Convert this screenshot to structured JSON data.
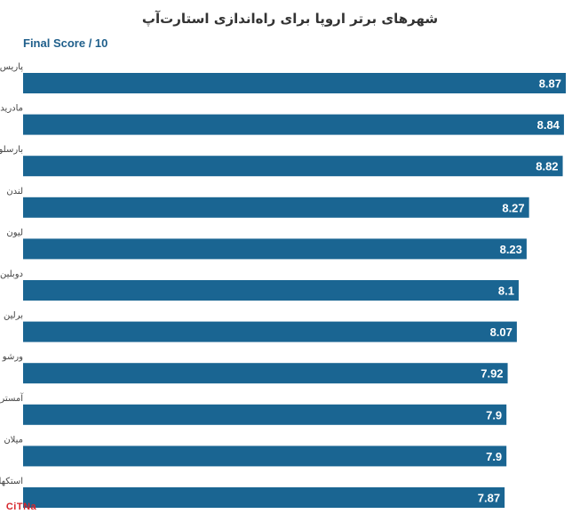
{
  "chart_data": {
    "type": "bar",
    "orientation": "horizontal",
    "title": "شهرهای برتر اروپا برای راه‌اندازی استارت‌آپ",
    "subtitle": "Final Score / 10",
    "categories": [
      "پاریس",
      "مادرید",
      "بارسلون",
      "لندن",
      "لیون",
      "دوبلین",
      "برلین",
      "ورشو",
      "آمستردام",
      "میلان",
      "استکهلم"
    ],
    "values": [
      8.87,
      8.84,
      8.82,
      8.27,
      8.23,
      8.1,
      8.07,
      7.92,
      7.9,
      7.9,
      7.87
    ],
    "value_labels": [
      "8.87",
      "8.84",
      "8.82",
      "8.27",
      "8.23",
      "8.1",
      "8.07",
      "7.92",
      "7.9",
      "7.9",
      "7.87"
    ],
    "xlim": [
      0,
      8.87
    ],
    "grid": false,
    "colors": {
      "bar": "#1a6592",
      "label": "#ffffff"
    }
  },
  "logo": {
    "text": "CiTNa"
  }
}
